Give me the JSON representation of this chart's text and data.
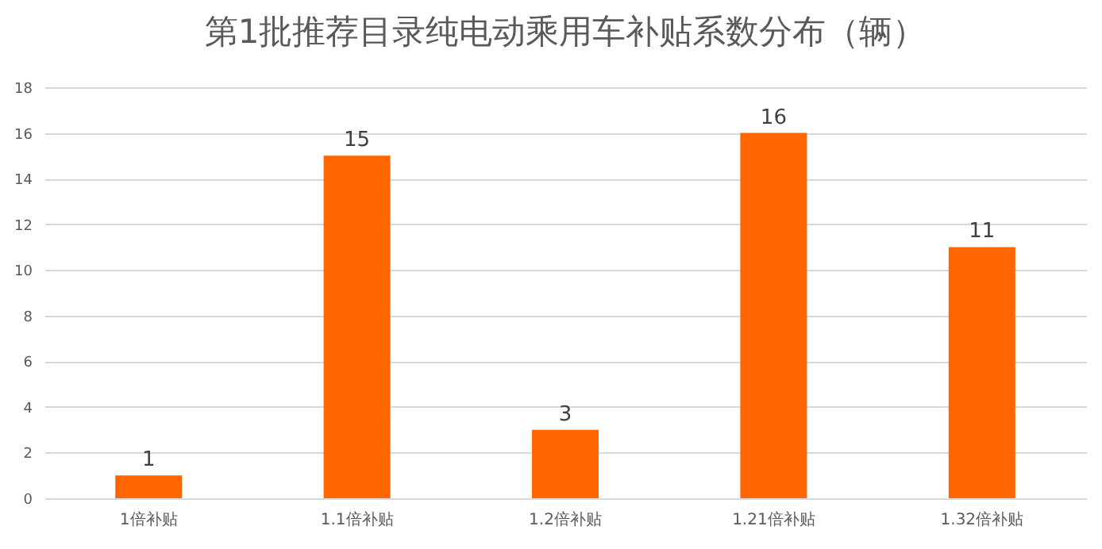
{
  "chart_data": {
    "type": "bar",
    "title": "第1批推荐目录纯电动乘用车补贴系数分布（辆）",
    "categories": [
      "1倍补贴",
      "1.1倍补贴",
      "1.2倍补贴",
      "1.21倍补贴",
      "1.32倍补贴"
    ],
    "values": [
      1,
      15,
      3,
      16,
      11
    ],
    "color": "#ff6600",
    "ylim": [
      0,
      18
    ],
    "yticks": [
      0,
      2,
      4,
      6,
      8,
      10,
      12,
      14,
      16,
      18
    ],
    "grid": "y",
    "data_labels": true
  }
}
